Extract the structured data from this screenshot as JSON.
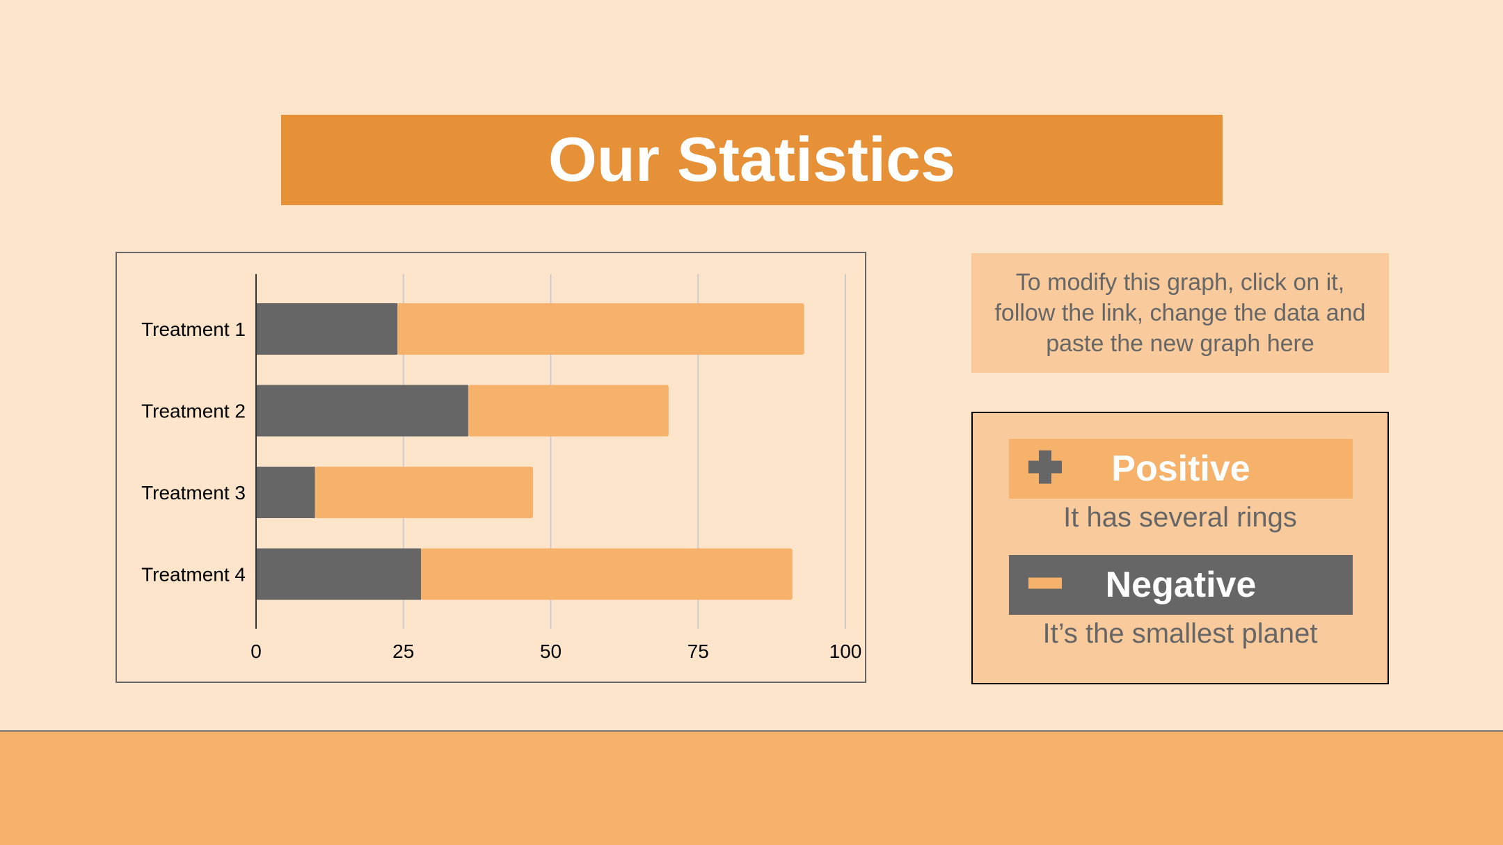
{
  "slide": {
    "title": "Our Statistics"
  },
  "note": {
    "text": "To modify this graph, click on it, follow the link, change the data and paste the new graph here"
  },
  "legend": {
    "positive": {
      "label": "Positive",
      "description": "It has several rings",
      "icon": "plus-icon"
    },
    "negative": {
      "label": "Negative",
      "description": "It’s the smallest planet",
      "icon": "minus-icon"
    }
  },
  "colors": {
    "background": "#fde5cc",
    "title_bar": "#e69138",
    "dark_series": "#666666",
    "light_series": "#f6b26b",
    "panel": "#f9cb9c"
  },
  "chart_data": {
    "type": "bar",
    "orientation": "horizontal",
    "stacked": true,
    "categories": [
      "Treatment 1",
      "Treatment 2",
      "Treatment 3",
      "Treatment 4"
    ],
    "series": [
      {
        "values": [
          24,
          36,
          10,
          28
        ],
        "color": "#666666"
      },
      {
        "values": [
          69,
          34,
          37,
          63
        ],
        "color": "#f6b26b"
      }
    ],
    "xlim": [
      0,
      100
    ],
    "xticks": [
      0,
      25,
      50,
      75,
      100
    ],
    "title": "",
    "xlabel": "",
    "ylabel": "",
    "grid": true,
    "legend": false
  }
}
